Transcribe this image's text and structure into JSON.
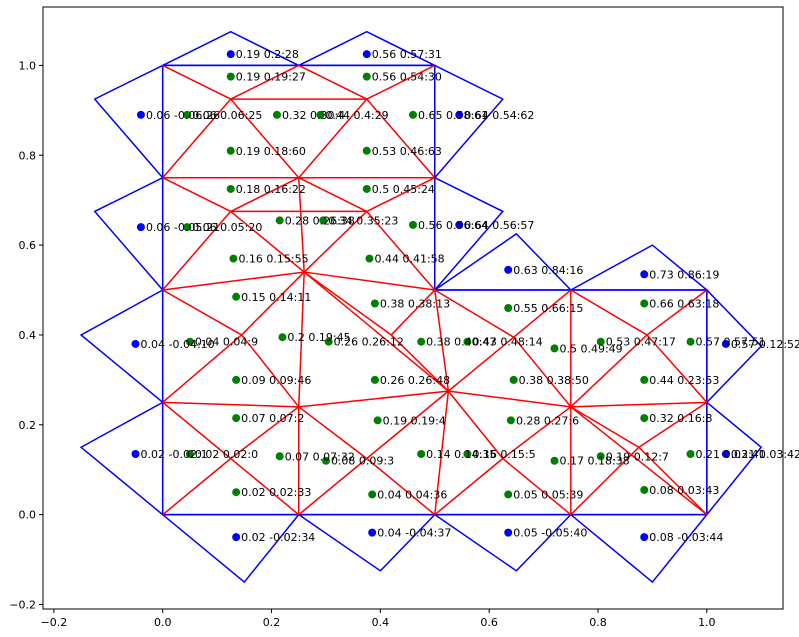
{
  "chart_data": {
    "type": "scatter",
    "title": "",
    "xlabel": "",
    "ylabel": "",
    "xlim": [
      -0.22,
      1.14
    ],
    "ylim": [
      -0.21,
      1.13
    ],
    "grid": false,
    "x_ticks": [
      {
        "value": -0.2,
        "label": "−0.2"
      },
      {
        "value": 0.0,
        "label": "0.0"
      },
      {
        "value": 0.2,
        "label": "0.2"
      },
      {
        "value": 0.4,
        "label": "0.4"
      },
      {
        "value": 0.6,
        "label": "0.6"
      },
      {
        "value": 0.8,
        "label": "0.8"
      },
      {
        "value": 1.0,
        "label": "1.0"
      }
    ],
    "y_ticks": [
      {
        "value": -0.2,
        "label": "−0.2"
      },
      {
        "value": 0.0,
        "label": "0.0"
      },
      {
        "value": 0.2,
        "label": "0.2"
      },
      {
        "value": 0.4,
        "label": "0.4"
      },
      {
        "value": 0.6,
        "label": "0.6"
      },
      {
        "value": 0.8,
        "label": "0.8"
      },
      {
        "value": 1.0,
        "label": "1.0"
      }
    ],
    "colors": {
      "boundary": "#0000ff",
      "mesh": "#ff0000",
      "interior_points": "#008000",
      "ghost_points": "#0000ff"
    },
    "boundary_polygon": [
      [
        0,
        1
      ],
      [
        0.5,
        1
      ],
      [
        0.5,
        0.5
      ],
      [
        1,
        0.5
      ],
      [
        1,
        0
      ],
      [
        0,
        0
      ],
      [
        0,
        1
      ]
    ],
    "ghost_triangles": [
      [
        [
          0,
          1
        ],
        [
          0.125,
          1.075
        ],
        [
          0.25,
          1
        ]
      ],
      [
        [
          0.25,
          1
        ],
        [
          0.375,
          1.075
        ],
        [
          0.5,
          1
        ]
      ],
      [
        [
          0.5,
          1
        ],
        [
          0.625,
          0.925
        ],
        [
          0.5,
          0.75
        ]
      ],
      [
        [
          0.5,
          0.75
        ],
        [
          0.625,
          0.675
        ],
        [
          0.5,
          0.5
        ]
      ],
      [
        [
          0.5,
          0.5
        ],
        [
          0.65,
          0.625
        ],
        [
          0.75,
          0.5
        ]
      ],
      [
        [
          0.75,
          0.5
        ],
        [
          0.9,
          0.6
        ],
        [
          1,
          0.5
        ]
      ],
      [
        [
          1,
          0.5
        ],
        [
          1.1,
          0.375
        ],
        [
          1,
          0.25
        ]
      ],
      [
        [
          1,
          0.25
        ],
        [
          1.1,
          0.15
        ],
        [
          1,
          0
        ]
      ],
      [
        [
          1,
          0
        ],
        [
          0.9,
          -0.15
        ],
        [
          0.75,
          0
        ]
      ],
      [
        [
          0.75,
          0
        ],
        [
          0.65,
          -0.125
        ],
        [
          0.5,
          0
        ]
      ],
      [
        [
          0.5,
          0
        ],
        [
          0.4,
          -0.125
        ],
        [
          0.25,
          0
        ]
      ],
      [
        [
          0.25,
          0
        ],
        [
          0.15,
          -0.15
        ],
        [
          0,
          0
        ]
      ],
      [
        [
          0,
          0
        ],
        [
          -0.15,
          0.15
        ],
        [
          0,
          0.25
        ]
      ],
      [
        [
          0,
          0.25
        ],
        [
          -0.15,
          0.4
        ],
        [
          0,
          0.5
        ]
      ],
      [
        [
          0,
          0.5
        ],
        [
          -0.125,
          0.675
        ],
        [
          0,
          0.75
        ]
      ],
      [
        [
          0,
          0.75
        ],
        [
          -0.125,
          0.925
        ],
        [
          0,
          1
        ]
      ]
    ],
    "mesh_edges": [
      [
        [
          0,
          1
        ],
        [
          0.125,
          0.925
        ]
      ],
      [
        [
          0.125,
          0.925
        ],
        [
          0.25,
          1
        ]
      ],
      [
        [
          0.25,
          1
        ],
        [
          0.375,
          0.925
        ]
      ],
      [
        [
          0.375,
          0.925
        ],
        [
          0.5,
          1
        ]
      ],
      [
        [
          0,
          0.75
        ],
        [
          0.125,
          0.925
        ]
      ],
      [
        [
          0.125,
          0.925
        ],
        [
          0.25,
          0.75
        ]
      ],
      [
        [
          0.25,
          0.75
        ],
        [
          0.375,
          0.925
        ]
      ],
      [
        [
          0.375,
          0.925
        ],
        [
          0.5,
          0.75
        ]
      ],
      [
        [
          0.125,
          0.925
        ],
        [
          0.375,
          0.925
        ]
      ],
      [
        [
          0,
          0.75
        ],
        [
          0.25,
          0.75
        ]
      ],
      [
        [
          0.25,
          0.75
        ],
        [
          0.5,
          0.75
        ]
      ],
      [
        [
          0,
          0.75
        ],
        [
          0.125,
          0.675
        ]
      ],
      [
        [
          0.125,
          0.675
        ],
        [
          0.25,
          0.75
        ]
      ],
      [
        [
          0.25,
          0.75
        ],
        [
          0.375,
          0.675
        ]
      ],
      [
        [
          0.375,
          0.675
        ],
        [
          0.5,
          0.75
        ]
      ],
      [
        [
          0.125,
          0.675
        ],
        [
          0.375,
          0.675
        ]
      ],
      [
        [
          0.125,
          0.675
        ],
        [
          0.26,
          0.54
        ]
      ],
      [
        [
          0.375,
          0.675
        ],
        [
          0.26,
          0.54
        ]
      ],
      [
        [
          0.375,
          0.675
        ],
        [
          0.5,
          0.5
        ]
      ],
      [
        [
          0,
          0.5
        ],
        [
          0.125,
          0.675
        ]
      ],
      [
        [
          0,
          0.5
        ],
        [
          0.26,
          0.54
        ]
      ],
      [
        [
          0.26,
          0.54
        ],
        [
          0.5,
          0.5
        ]
      ],
      [
        [
          0.26,
          0.54
        ],
        [
          0.25,
          0.75
        ]
      ],
      [
        [
          0,
          0.5
        ],
        [
          0.145,
          0.4
        ]
      ],
      [
        [
          0.145,
          0.4
        ],
        [
          0.26,
          0.54
        ]
      ],
      [
        [
          0.145,
          0.4
        ],
        [
          0.25,
          0.24
        ]
      ],
      [
        [
          0.26,
          0.54
        ],
        [
          0.25,
          0.24
        ]
      ],
      [
        [
          0.26,
          0.54
        ],
        [
          0.42,
          0.4
        ]
      ],
      [
        [
          0.42,
          0.4
        ],
        [
          0.5,
          0.5
        ]
      ],
      [
        [
          0.42,
          0.4
        ],
        [
          0.525,
          0.275
        ]
      ],
      [
        [
          0.5,
          0.5
        ],
        [
          0.525,
          0.275
        ]
      ],
      [
        [
          0.26,
          0.54
        ],
        [
          0.525,
          0.275
        ]
      ],
      [
        [
          0.5,
          0.5
        ],
        [
          0.645,
          0.395
        ]
      ],
      [
        [
          0.645,
          0.395
        ],
        [
          0.75,
          0.5
        ]
      ],
      [
        [
          0.645,
          0.395
        ],
        [
          0.525,
          0.275
        ]
      ],
      [
        [
          0.645,
          0.395
        ],
        [
          0.75,
          0.24
        ]
      ],
      [
        [
          0.525,
          0.275
        ],
        [
          0.75,
          0.24
        ]
      ],
      [
        [
          0.75,
          0.5
        ],
        [
          0.75,
          0.24
        ]
      ],
      [
        [
          0.75,
          0.5
        ],
        [
          0.89,
          0.4
        ]
      ],
      [
        [
          0.89,
          0.4
        ],
        [
          1,
          0.5
        ]
      ],
      [
        [
          0.89,
          0.4
        ],
        [
          0.75,
          0.24
        ]
      ],
      [
        [
          0.89,
          0.4
        ],
        [
          1,
          0.25
        ]
      ],
      [
        [
          0.75,
          0.24
        ],
        [
          1,
          0.25
        ]
      ],
      [
        [
          0.75,
          0.24
        ],
        [
          0.875,
          0.15
        ]
      ],
      [
        [
          0.875,
          0.15
        ],
        [
          1,
          0.25
        ]
      ],
      [
        [
          0.875,
          0.15
        ],
        [
          1,
          0
        ]
      ],
      [
        [
          0.75,
          0.24
        ],
        [
          1,
          0
        ]
      ],
      [
        [
          0.75,
          0
        ],
        [
          0.75,
          0.24
        ]
      ],
      [
        [
          0.75,
          0
        ],
        [
          0.875,
          0.15
        ]
      ],
      [
        [
          0.75,
          0.24
        ],
        [
          0.625,
          0.125
        ]
      ],
      [
        [
          0.625,
          0.125
        ],
        [
          0.75,
          0
        ]
      ],
      [
        [
          0.625,
          0.125
        ],
        [
          0.5,
          0
        ]
      ],
      [
        [
          0.525,
          0.275
        ],
        [
          0.625,
          0.125
        ]
      ],
      [
        [
          0.525,
          0.275
        ],
        [
          0.5,
          0
        ]
      ],
      [
        [
          0.525,
          0.275
        ],
        [
          0.375,
          0.125
        ]
      ],
      [
        [
          0.375,
          0.125
        ],
        [
          0.5,
          0
        ]
      ],
      [
        [
          0.375,
          0.125
        ],
        [
          0.25,
          0
        ]
      ],
      [
        [
          0.25,
          0.24
        ],
        [
          0.525,
          0.275
        ]
      ],
      [
        [
          0.25,
          0.24
        ],
        [
          0.375,
          0.125
        ]
      ],
      [
        [
          0.25,
          0.24
        ],
        [
          0.25,
          0
        ]
      ],
      [
        [
          0,
          0.25
        ],
        [
          0.145,
          0.4
        ]
      ],
      [
        [
          0,
          0.25
        ],
        [
          0.25,
          0.24
        ]
      ],
      [
        [
          0,
          0.25
        ],
        [
          0.125,
          0.125
        ]
      ],
      [
        [
          0.125,
          0.125
        ],
        [
          0.25,
          0.24
        ]
      ],
      [
        [
          0.125,
          0.125
        ],
        [
          0.25,
          0
        ]
      ],
      [
        [
          0,
          0
        ],
        [
          0.125,
          0.125
        ]
      ]
    ],
    "series": [
      {
        "name": "",
        "color": "#008000",
        "points": [
          {
            "x": 0.125,
            "y": 0.975,
            "label": "0.19 0.19:27"
          },
          {
            "x": 0.375,
            "y": 0.975,
            "label": "0.56 0.54:30"
          },
          {
            "x": 0.045,
            "y": 0.89,
            "label": "0.06 0.06:25"
          },
          {
            "x": 0.21,
            "y": 0.89,
            "label": "0.32 0.30:4"
          },
          {
            "x": 0.29,
            "y": 0.89,
            "label": "0.44 0.4:29"
          },
          {
            "x": 0.46,
            "y": 0.89,
            "label": "0.65 0.58:61"
          },
          {
            "x": 0.125,
            "y": 0.81,
            "label": "0.19 0.18:60"
          },
          {
            "x": 0.375,
            "y": 0.81,
            "label": "0.53 0.46:63"
          },
          {
            "x": 0.125,
            "y": 0.725,
            "label": "0.18 0.16:22"
          },
          {
            "x": 0.375,
            "y": 0.725,
            "label": "0.5 0.45:24"
          },
          {
            "x": 0.045,
            "y": 0.64,
            "label": "0.06 0.05:20"
          },
          {
            "x": 0.215,
            "y": 0.655,
            "label": "0.28 0.26:38"
          },
          {
            "x": 0.295,
            "y": 0.655,
            "label": "0.34 0.35:23"
          },
          {
            "x": 0.46,
            "y": 0.645,
            "label": "0.56 0.56:64"
          },
          {
            "x": 0.13,
            "y": 0.57,
            "label": "0.16 0.15:55"
          },
          {
            "x": 0.38,
            "y": 0.57,
            "label": "0.44 0.41:58"
          },
          {
            "x": 0.135,
            "y": 0.485,
            "label": "0.15 0.14:11"
          },
          {
            "x": 0.39,
            "y": 0.47,
            "label": "0.38 0.38:13"
          },
          {
            "x": 0.635,
            "y": 0.46,
            "label": "0.55 0.66:15"
          },
          {
            "x": 0.885,
            "y": 0.47,
            "label": "0.66 0.63:18"
          },
          {
            "x": 0.05,
            "y": 0.385,
            "label": "0.04 0.04:9"
          },
          {
            "x": 0.22,
            "y": 0.395,
            "label": "0.2 0.19:45"
          },
          {
            "x": 0.305,
            "y": 0.385,
            "label": "0.26 0.26:12"
          },
          {
            "x": 0.475,
            "y": 0.385,
            "label": "0.38 0.40:47"
          },
          {
            "x": 0.56,
            "y": 0.385,
            "label": "0.43 0.48:14"
          },
          {
            "x": 0.72,
            "y": 0.37,
            "label": "0.5 0.49:49"
          },
          {
            "x": 0.805,
            "y": 0.385,
            "label": "0.53 0.47:17"
          },
          {
            "x": 0.97,
            "y": 0.385,
            "label": "0.57 0.57:51"
          },
          {
            "x": 0.135,
            "y": 0.3,
            "label": "0.09 0.09:46"
          },
          {
            "x": 0.39,
            "y": 0.3,
            "label": "0.26 0.26:48"
          },
          {
            "x": 0.645,
            "y": 0.3,
            "label": "0.38 0.38:50"
          },
          {
            "x": 0.885,
            "y": 0.3,
            "label": "0.44 0.23:53"
          },
          {
            "x": 0.135,
            "y": 0.215,
            "label": "0.07 0.07:2"
          },
          {
            "x": 0.395,
            "y": 0.21,
            "label": "0.19 0.19:4"
          },
          {
            "x": 0.64,
            "y": 0.21,
            "label": "0.28 0.27:6"
          },
          {
            "x": 0.885,
            "y": 0.215,
            "label": "0.32 0.16:8"
          },
          {
            "x": 0.05,
            "y": 0.135,
            "label": "0.02 0.02:0"
          },
          {
            "x": 0.215,
            "y": 0.13,
            "label": "0.07 0.07:32"
          },
          {
            "x": 0.3,
            "y": 0.12,
            "label": "0.08 0.09:3"
          },
          {
            "x": 0.475,
            "y": 0.135,
            "label": "0.14 0.14:35"
          },
          {
            "x": 0.56,
            "y": 0.135,
            "label": "0.16 0.15:5"
          },
          {
            "x": 0.72,
            "y": 0.12,
            "label": "0.17 0.18:38"
          },
          {
            "x": 0.805,
            "y": 0.13,
            "label": "0.19 0.12:7"
          },
          {
            "x": 0.97,
            "y": 0.135,
            "label": "0.21 0.03:41"
          },
          {
            "x": 0.135,
            "y": 0.05,
            "label": "0.02 0.02:33"
          },
          {
            "x": 0.385,
            "y": 0.045,
            "label": "0.04 0.04:36"
          },
          {
            "x": 0.635,
            "y": 0.045,
            "label": "0.05 0.05:39"
          },
          {
            "x": 0.885,
            "y": 0.055,
            "label": "0.08 0.03:43"
          }
        ]
      },
      {
        "name": "",
        "color": "#0000ff",
        "points": [
          {
            "x": 0.125,
            "y": 1.025,
            "label": "0.19 0.2:28"
          },
          {
            "x": 0.375,
            "y": 1.025,
            "label": "0.56 0.57:31"
          },
          {
            "x": -0.04,
            "y": 0.89,
            "label": "0.06 -0.06:26"
          },
          {
            "x": 0.545,
            "y": 0.89,
            "label": "0.64 0.54:62"
          },
          {
            "x": -0.04,
            "y": 0.64,
            "label": "0.06 -0.05:21"
          },
          {
            "x": 0.545,
            "y": 0.645,
            "label": "0.64 0.56:57"
          },
          {
            "x": 0.635,
            "y": 0.545,
            "label": "0.63 0.84:16"
          },
          {
            "x": 0.885,
            "y": 0.535,
            "label": "0.73 0.86:19"
          },
          {
            "x": -0.05,
            "y": 0.38,
            "label": "0.04 -0.04:10"
          },
          {
            "x": 1.035,
            "y": 0.38,
            "label": "0.57 0.12:52"
          },
          {
            "x": -0.05,
            "y": 0.135,
            "label": "0.02 -0.02:1"
          },
          {
            "x": 1.035,
            "y": 0.135,
            "label": "0.21 0.03:42"
          },
          {
            "x": 0.135,
            "y": -0.05,
            "label": "0.02 -0.02:34"
          },
          {
            "x": 0.385,
            "y": -0.04,
            "label": "0.04 -0.04:37"
          },
          {
            "x": 0.635,
            "y": -0.04,
            "label": "0.05 -0.05:40"
          },
          {
            "x": 0.885,
            "y": -0.05,
            "label": "0.08 -0.03:44"
          }
        ]
      }
    ]
  }
}
